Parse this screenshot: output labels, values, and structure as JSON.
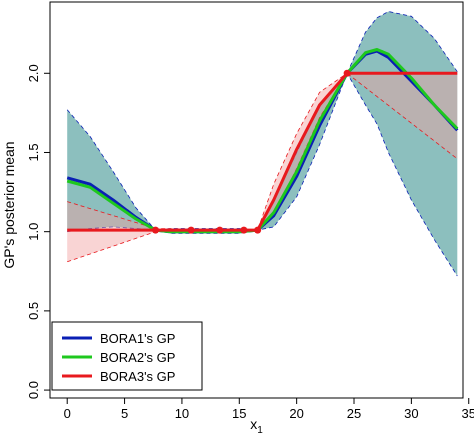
{
  "chart_data": {
    "type": "line",
    "title": "",
    "xlabel": "x",
    "xlabel_sub": "1",
    "ylabel": "GP's posterior mean",
    "xlim": [
      -1.5,
      34.5
    ],
    "ylim": [
      -0.05,
      2.45
    ],
    "x_ticks": [
      0,
      5,
      10,
      15,
      20,
      25,
      30,
      35
    ],
    "y_ticks": [
      0.0,
      0.5,
      1.0,
      1.5,
      2.0
    ],
    "y_tick_labels": [
      "0.0",
      "0.5",
      "1.0",
      "1.5",
      "2.0"
    ],
    "grid": false,
    "legend_position": "bottom-left",
    "observations": {
      "x": [
        7.7,
        10.8,
        13.3,
        15.4,
        16.6,
        24.4
      ],
      "y": [
        1.01,
        1.01,
        1.01,
        1.01,
        1.01,
        2.0
      ]
    },
    "series": [
      {
        "name": "BORA1's GP",
        "color": "#0a1fb4",
        "band_color": "#2e8a88",
        "x": [
          0,
          2,
          4,
          6,
          7.7,
          9,
          11,
          13,
          15,
          16.6,
          18,
          20,
          22,
          24.4,
          26,
          27,
          28,
          30,
          32,
          34
        ],
        "y": [
          1.34,
          1.3,
          1.2,
          1.09,
          1.01,
          1.0,
          1.0,
          1.0,
          1.0,
          1.01,
          1.1,
          1.35,
          1.67,
          2.0,
          2.12,
          2.14,
          2.1,
          1.95,
          1.8,
          1.64
        ],
        "lower": [
          1.0,
          1.02,
          1.03,
          1.02,
          1.01,
          0.99,
          0.99,
          0.99,
          0.99,
          1.01,
          1.03,
          1.22,
          1.55,
          2.0,
          1.8,
          1.68,
          1.5,
          1.2,
          0.95,
          0.72
        ],
        "upper": [
          1.77,
          1.6,
          1.38,
          1.15,
          1.01,
          1.02,
          1.02,
          1.02,
          1.02,
          1.01,
          1.2,
          1.5,
          1.8,
          2.0,
          2.26,
          2.35,
          2.39,
          2.36,
          2.22,
          2.01
        ]
      },
      {
        "name": "BORA2's GP",
        "color": "#1ec81e",
        "x": [
          0,
          2,
          4,
          6,
          7.7,
          9,
          11,
          13,
          15,
          16.6,
          18,
          20,
          22,
          24.4,
          26,
          27,
          28,
          30,
          32,
          34
        ],
        "y": [
          1.32,
          1.28,
          1.18,
          1.08,
          1.01,
          1.0,
          1.0,
          1.0,
          1.0,
          1.01,
          1.12,
          1.38,
          1.7,
          2.0,
          2.13,
          2.15,
          2.12,
          1.97,
          1.8,
          1.65
        ],
        "lower": [],
        "upper": []
      },
      {
        "name": "BORA3's GP",
        "color": "#e8191e",
        "band_color": "#f2a0a0",
        "x": [
          0,
          7.7,
          16.6,
          18,
          20,
          22,
          24.4,
          34
        ],
        "y": [
          1.01,
          1.01,
          1.01,
          1.2,
          1.52,
          1.8,
          2.0,
          2.0
        ],
        "lower": [
          0.81,
          1.0,
          1.01,
          1.1,
          1.4,
          1.72,
          2.0,
          1.46
        ],
        "upper": [
          1.19,
          1.02,
          1.01,
          1.3,
          1.62,
          1.88,
          2.0,
          2.0
        ]
      }
    ]
  }
}
